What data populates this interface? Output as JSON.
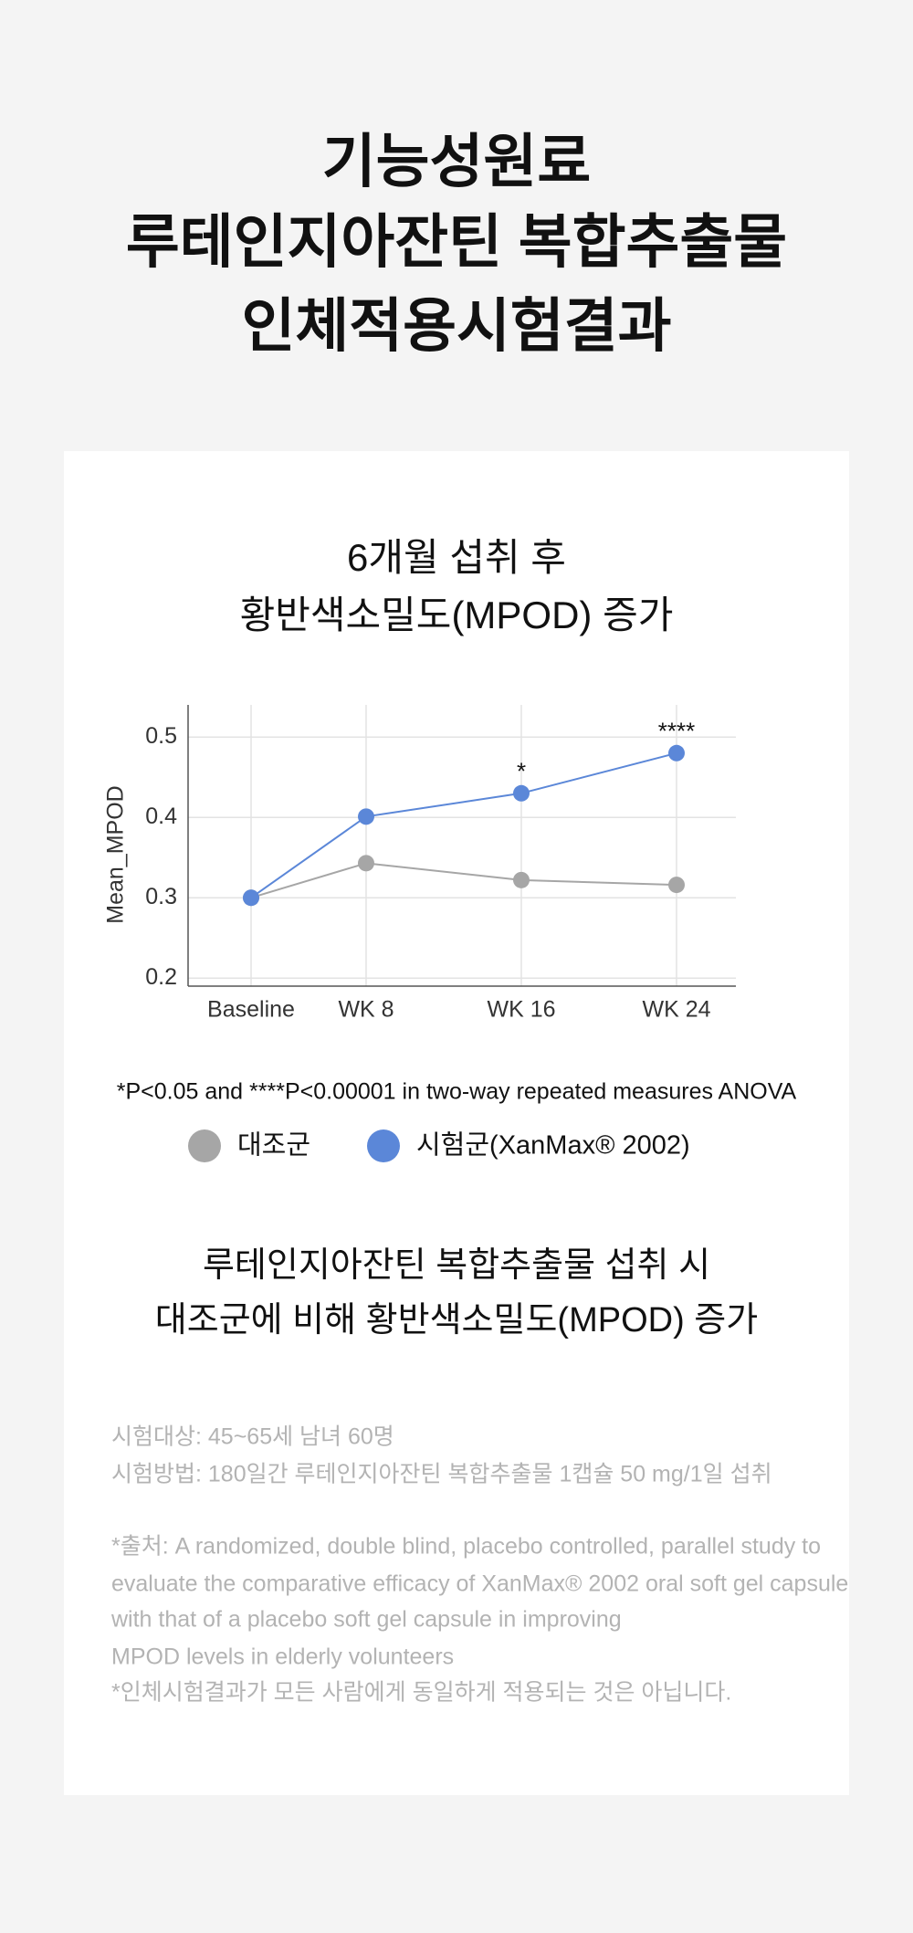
{
  "header": {
    "title": [
      "기능성원료",
      "루테인지아잔틴 복합추출물",
      "인체적용시험결과"
    ]
  },
  "chart_data": {
    "type": "line",
    "title": [
      "6개월 섭취 후",
      "황반색소밀도(MPOD) 증가"
    ],
    "y_label": "Mean_MPOD",
    "categories": [
      "Baseline",
      "WK 8",
      "WK 16",
      "WK 24"
    ],
    "series": [
      {
        "name": "대조군",
        "color": "#a6a6a6",
        "values": [
          0.3,
          0.343,
          0.322,
          0.316
        ]
      },
      {
        "name": "시험군(XanMax® 2002)",
        "color": "#5b87d8",
        "values": [
          0.3,
          0.401,
          0.43,
          0.48
        ],
        "significance": [
          null,
          null,
          "*",
          "****"
        ]
      }
    ],
    "ylim": [
      0.19,
      0.54
    ],
    "yticks": [
      0.2,
      0.3,
      0.4,
      0.5
    ],
    "grid": true,
    "note": "*P<0.05 and ****P<0.00001 in two-way repeated measures ANOVA"
  },
  "conclusion": [
    "루테인지아잔틴 복합추출물 섭취 시",
    "대조군에 비해 황반색소밀도(MPOD) 증가"
  ],
  "study_info": [
    "시험대상: 45~65세 남녀 60명",
    "시험방법: 180일간 루테인지아잔틴 복합추출물 1캡슐 50 mg/1일 섭취"
  ],
  "source": [
    "*출처: A randomized, double blind, placebo controlled, parallel study to",
    "evaluate the comparative efficacy of XanMax® 2002 oral soft gel capsule",
    "with that of a placebo soft gel capsule in improving",
    "MPOD levels in elderly volunteers",
    "*인체시험결과가 모든 사람에게 동일하게 적용되는 것은 아닙니다."
  ]
}
